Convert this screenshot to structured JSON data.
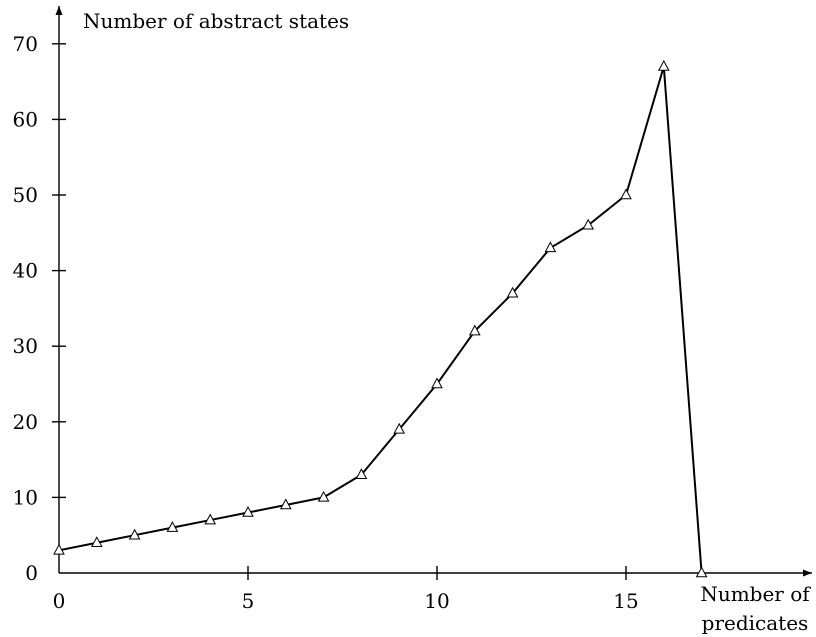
{
  "chart_data": {
    "type": "line",
    "ylabel": "Number of abstract states",
    "xlabel_lines": [
      "Number of",
      "predicates"
    ],
    "x_ticks": [
      0,
      5,
      10,
      15
    ],
    "y_ticks": [
      0,
      10,
      20,
      30,
      40,
      50,
      60,
      70
    ],
    "xlim": [
      0,
      20
    ],
    "ylim": [
      0,
      75
    ],
    "grid": false,
    "marker": "triangle",
    "series": [
      {
        "x": [
          0,
          1,
          2,
          3,
          4,
          5,
          6,
          7,
          8,
          9,
          10,
          11,
          12,
          13,
          14,
          15,
          16,
          17
        ],
        "y": [
          3,
          4,
          5,
          6,
          7,
          8,
          9,
          10,
          13,
          19,
          25,
          32,
          37,
          43,
          46,
          50,
          67,
          0
        ]
      }
    ]
  }
}
